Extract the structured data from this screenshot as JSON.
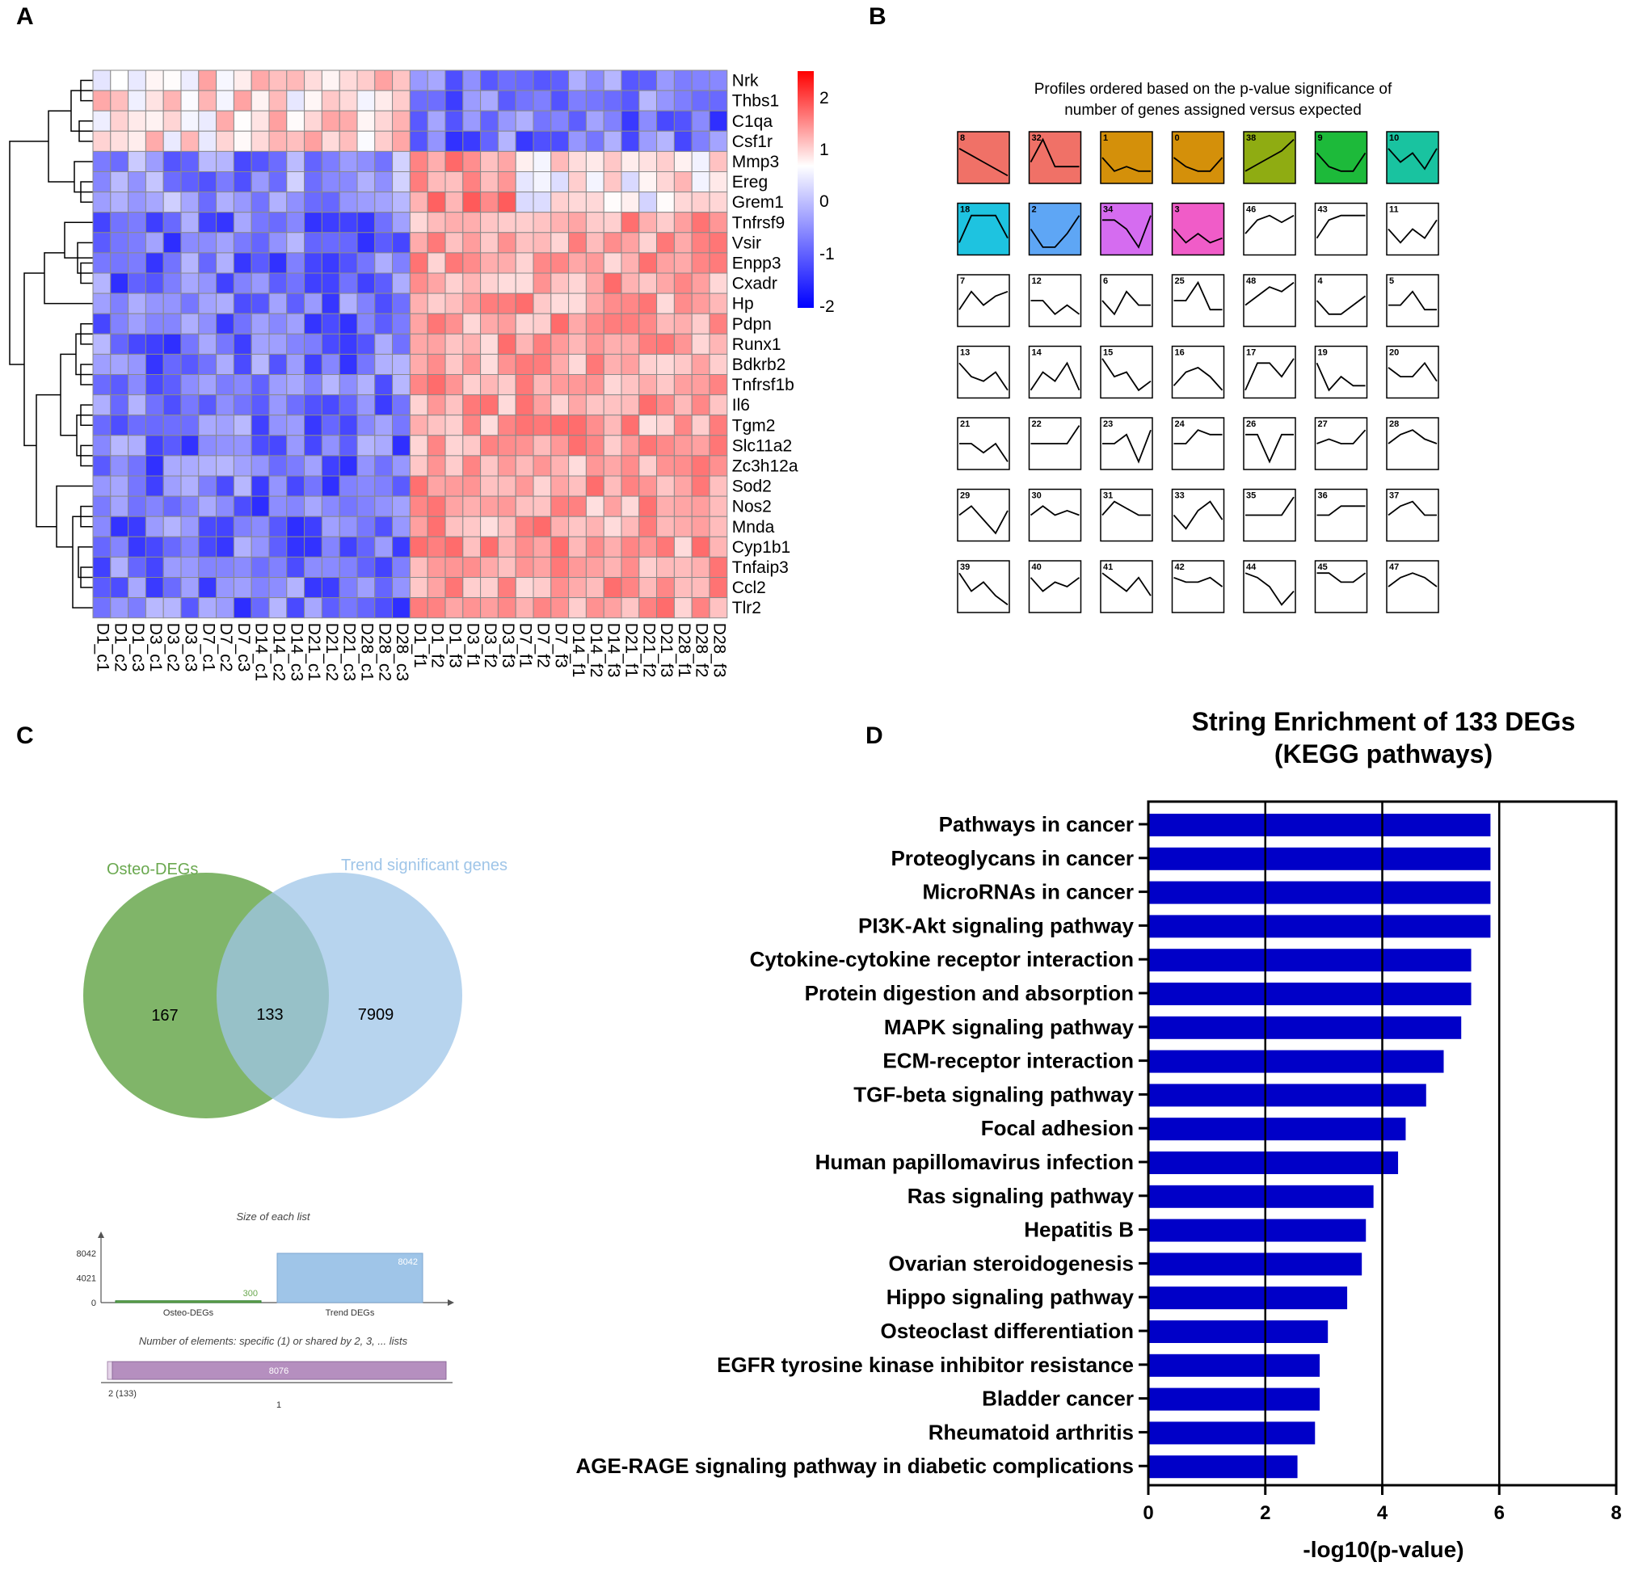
{
  "panels": {
    "a": "A",
    "b": "B",
    "c": "C",
    "d": "D"
  },
  "heatmap": {
    "genes": [
      "Nrk",
      "Thbs1",
      "C1qa",
      "Csf1r",
      "Mmp3",
      "Ereg",
      "Grem1",
      "Tnfrsf9",
      "Vsir",
      "Enpp3",
      "Cxadr",
      "Hp",
      "Pdpn",
      "Runx1",
      "Bdkrb2",
      "Tnfrsf1b",
      "Il6",
      "Tgm2",
      "Slc11a2",
      "Zc3h12a",
      "Sod2",
      "Nos2",
      "Mnda",
      "Cyp1b1",
      "Tnfaip3",
      "Ccl2",
      "Tlr2"
    ],
    "samples": [
      "D1_c1",
      "D1_c2",
      "D1_c3",
      "D3_c1",
      "D3_c2",
      "D3_c3",
      "D7_c1",
      "D7_c2",
      "D7_c3",
      "D14_c1",
      "D14_c2",
      "D14_c3",
      "D21_c1",
      "D21_c2",
      "D21_c3",
      "D28_c1",
      "D28_c2",
      "D28_c3",
      "D1_f1",
      "D1_f2",
      "D1_f3",
      "D3_f1",
      "D3_f2",
      "D3_f3",
      "D7_f1",
      "D7_f2",
      "D7_f3",
      "D14_f1",
      "D14_f2",
      "D14_f3",
      "D21_f1",
      "D21_f2",
      "D21_f3",
      "D28_f1",
      "D28_f2",
      "D28_f3"
    ],
    "legend_ticks": [
      "2",
      "1",
      "0",
      "-1",
      "-2"
    ],
    "colors": {
      "low": "#0000ff",
      "mid": "#ffffff",
      "high": "#ff0000",
      "grid": "#8a8a8a"
    }
  },
  "profiles": {
    "title_line1": "Profiles ordered based on the p-value significance of",
    "title_line2": "number of genes assigned versus expected",
    "items": [
      {
        "id": "8",
        "color": "#f07167",
        "pts": [
          0.3,
          0.45,
          0.6,
          0.75,
          0.9
        ]
      },
      {
        "id": "32",
        "color": "#f07167",
        "pts": [
          0.6,
          0.1,
          0.7,
          0.7,
          0.7
        ]
      },
      {
        "id": "1",
        "color": "#d4900a",
        "pts": [
          0.5,
          0.8,
          0.7,
          0.8,
          0.8
        ]
      },
      {
        "id": "0",
        "color": "#d4900a",
        "pts": [
          0.5,
          0.7,
          0.8,
          0.8,
          0.5
        ]
      },
      {
        "id": "38",
        "color": "#8fac12",
        "pts": [
          0.8,
          0.65,
          0.5,
          0.35,
          0.1
        ]
      },
      {
        "id": "9",
        "color": "#1dba3a",
        "pts": [
          0.4,
          0.7,
          0.8,
          0.8,
          0.4
        ]
      },
      {
        "id": "10",
        "color": "#19c3a0",
        "pts": [
          0.3,
          0.6,
          0.4,
          0.75,
          0.3
        ]
      },
      {
        "id": "18",
        "color": "#1ec3e0",
        "pts": [
          0.8,
          0.2,
          0.2,
          0.2,
          0.7
        ]
      },
      {
        "id": "2",
        "color": "#5ea6f5",
        "pts": [
          0.5,
          0.9,
          0.9,
          0.6,
          0.2
        ]
      },
      {
        "id": "34",
        "color": "#d56cf0",
        "pts": [
          0.3,
          0.3,
          0.5,
          0.9,
          0.2
        ]
      },
      {
        "id": "3",
        "color": "#f05cc8",
        "pts": [
          0.5,
          0.8,
          0.6,
          0.8,
          0.7
        ]
      },
      {
        "id": "46",
        "color": "#ffffff",
        "pts": [
          0.6,
          0.3,
          0.2,
          0.35,
          0.2
        ]
      },
      {
        "id": "43",
        "color": "#ffffff",
        "pts": [
          0.7,
          0.3,
          0.2,
          0.2,
          0.2
        ]
      },
      {
        "id": "11",
        "color": "#ffffff",
        "pts": [
          0.5,
          0.8,
          0.5,
          0.7,
          0.3
        ]
      },
      {
        "id": "7",
        "color": "#ffffff",
        "pts": [
          0.7,
          0.3,
          0.6,
          0.4,
          0.3
        ]
      },
      {
        "id": "12",
        "color": "#ffffff",
        "pts": [
          0.5,
          0.5,
          0.8,
          0.6,
          0.8
        ]
      },
      {
        "id": "6",
        "color": "#ffffff",
        "pts": [
          0.5,
          0.8,
          0.3,
          0.6,
          0.6
        ]
      },
      {
        "id": "25",
        "color": "#ffffff",
        "pts": [
          0.5,
          0.5,
          0.1,
          0.7,
          0.7
        ]
      },
      {
        "id": "48",
        "color": "#ffffff",
        "pts": [
          0.6,
          0.4,
          0.2,
          0.3,
          0.1
        ]
      },
      {
        "id": "4",
        "color": "#ffffff",
        "pts": [
          0.5,
          0.8,
          0.8,
          0.6,
          0.4
        ]
      },
      {
        "id": "5",
        "color": "#ffffff",
        "pts": [
          0.6,
          0.6,
          0.3,
          0.7,
          0.7
        ]
      },
      {
        "id": "13",
        "color": "#ffffff",
        "pts": [
          0.3,
          0.6,
          0.7,
          0.5,
          0.9
        ]
      },
      {
        "id": "14",
        "color": "#ffffff",
        "pts": [
          0.9,
          0.5,
          0.7,
          0.3,
          0.9
        ]
      },
      {
        "id": "15",
        "color": "#ffffff",
        "pts": [
          0.2,
          0.6,
          0.5,
          0.9,
          0.7
        ]
      },
      {
        "id": "16",
        "color": "#ffffff",
        "pts": [
          0.8,
          0.5,
          0.4,
          0.6,
          0.9
        ]
      },
      {
        "id": "17",
        "color": "#ffffff",
        "pts": [
          0.9,
          0.3,
          0.3,
          0.6,
          0.2
        ]
      },
      {
        "id": "19",
        "color": "#ffffff",
        "pts": [
          0.3,
          0.9,
          0.6,
          0.8,
          0.8
        ]
      },
      {
        "id": "20",
        "color": "#ffffff",
        "pts": [
          0.4,
          0.6,
          0.6,
          0.3,
          0.7
        ]
      },
      {
        "id": "21",
        "color": "#ffffff",
        "pts": [
          0.5,
          0.5,
          0.7,
          0.5,
          0.9
        ]
      },
      {
        "id": "22",
        "color": "#ffffff",
        "pts": [
          0.5,
          0.5,
          0.5,
          0.5,
          0.1
        ]
      },
      {
        "id": "23",
        "color": "#ffffff",
        "pts": [
          0.5,
          0.5,
          0.3,
          0.9,
          0.2
        ]
      },
      {
        "id": "24",
        "color": "#ffffff",
        "pts": [
          0.5,
          0.5,
          0.2,
          0.3,
          0.3
        ]
      },
      {
        "id": "26",
        "color": "#ffffff",
        "pts": [
          0.3,
          0.3,
          0.9,
          0.3,
          0.3
        ]
      },
      {
        "id": "27",
        "color": "#ffffff",
        "pts": [
          0.5,
          0.4,
          0.5,
          0.5,
          0.2
        ]
      },
      {
        "id": "28",
        "color": "#ffffff",
        "pts": [
          0.5,
          0.3,
          0.2,
          0.4,
          0.5
        ]
      },
      {
        "id": "29",
        "color": "#ffffff",
        "pts": [
          0.5,
          0.3,
          0.6,
          0.9,
          0.4
        ]
      },
      {
        "id": "30",
        "color": "#ffffff",
        "pts": [
          0.5,
          0.3,
          0.5,
          0.4,
          0.5
        ]
      },
      {
        "id": "31",
        "color": "#ffffff",
        "pts": [
          0.5,
          0.2,
          0.35,
          0.5,
          0.5
        ]
      },
      {
        "id": "33",
        "color": "#ffffff",
        "pts": [
          0.5,
          0.8,
          0.4,
          0.2,
          0.6
        ]
      },
      {
        "id": "35",
        "color": "#ffffff",
        "pts": [
          0.5,
          0.5,
          0.5,
          0.5,
          0.1
        ]
      },
      {
        "id": "36",
        "color": "#ffffff",
        "pts": [
          0.5,
          0.5,
          0.3,
          0.3,
          0.3
        ]
      },
      {
        "id": "37",
        "color": "#ffffff",
        "pts": [
          0.5,
          0.3,
          0.2,
          0.5,
          0.5
        ]
      },
      {
        "id": "39",
        "color": "#ffffff",
        "pts": [
          0.2,
          0.6,
          0.4,
          0.7,
          0.9
        ]
      },
      {
        "id": "40",
        "color": "#ffffff",
        "pts": [
          0.3,
          0.6,
          0.4,
          0.5,
          0.3
        ]
      },
      {
        "id": "41",
        "color": "#ffffff",
        "pts": [
          0.2,
          0.4,
          0.6,
          0.3,
          0.7
        ]
      },
      {
        "id": "42",
        "color": "#ffffff",
        "pts": [
          0.3,
          0.4,
          0.4,
          0.3,
          0.5
        ]
      },
      {
        "id": "44",
        "color": "#ffffff",
        "pts": [
          0.2,
          0.3,
          0.5,
          0.9,
          0.6
        ]
      },
      {
        "id": "45",
        "color": "#ffffff",
        "pts": [
          0.2,
          0.2,
          0.4,
          0.4,
          0.2
        ]
      },
      {
        "id": "47",
        "color": "#ffffff",
        "pts": [
          0.5,
          0.3,
          0.2,
          0.3,
          0.5
        ]
      }
    ]
  },
  "venn": {
    "left_label": "Osteo-DEGs",
    "right_label": "Trend significant genes",
    "left_only": "167",
    "shared": "133",
    "right_only": "7909",
    "left_color": "#6aa84f",
    "right_color": "#9fc5e8",
    "size_chart": {
      "title": "Size of each list",
      "y_ticks": [
        "8042",
        "4021",
        "0"
      ],
      "bars": [
        {
          "label": "Osteo-DEGs",
          "value": 300,
          "value_label": "300"
        },
        {
          "label": "Trend DEGs",
          "value": 8042,
          "value_label": "8042"
        }
      ],
      "ymax": 8042
    },
    "shared_chart": {
      "title": "Number of elements: specific (1) or shared by 2, 3, ... lists",
      "bar_label": "8076",
      "tick_left": "2 (133)",
      "tick_right": "1"
    }
  },
  "chart_data": {
    "type": "bar",
    "orientation": "horizontal",
    "title_line1": "String Enrichment of 133 DEGs",
    "title_line2": "(KEGG pathways)",
    "xlabel": "-log10(p-value)",
    "xlim": [
      0,
      8
    ],
    "x_ticks": [
      "0",
      "2",
      "4",
      "6",
      "8"
    ],
    "bar_color": "#0000c8",
    "categories": [
      "Pathways in cancer",
      "Proteoglycans in cancer",
      "MicroRNAs in cancer",
      "PI3K-Akt signaling pathway",
      "Cytokine-cytokine receptor interaction",
      "Protein digestion and absorption",
      "MAPK signaling pathway",
      "ECM-receptor interaction",
      "TGF-beta signaling pathway",
      "Focal adhesion",
      "Human papillomavirus infection",
      "Ras signaling pathway",
      "Hepatitis B",
      "Ovarian steroidogenesis",
      "Hippo signaling pathway",
      "Osteoclast differentiation",
      "EGFR tyrosine kinase inhibitor resistance",
      "Bladder cancer",
      "Rheumatoid arthritis",
      "AGE-RAGE signaling pathway in diabetic complications"
    ],
    "values": [
      5.85,
      5.85,
      5.85,
      5.85,
      5.52,
      5.52,
      5.35,
      5.05,
      4.75,
      4.4,
      4.27,
      3.85,
      3.72,
      3.65,
      3.4,
      3.07,
      2.93,
      2.93,
      2.85,
      2.55
    ]
  }
}
